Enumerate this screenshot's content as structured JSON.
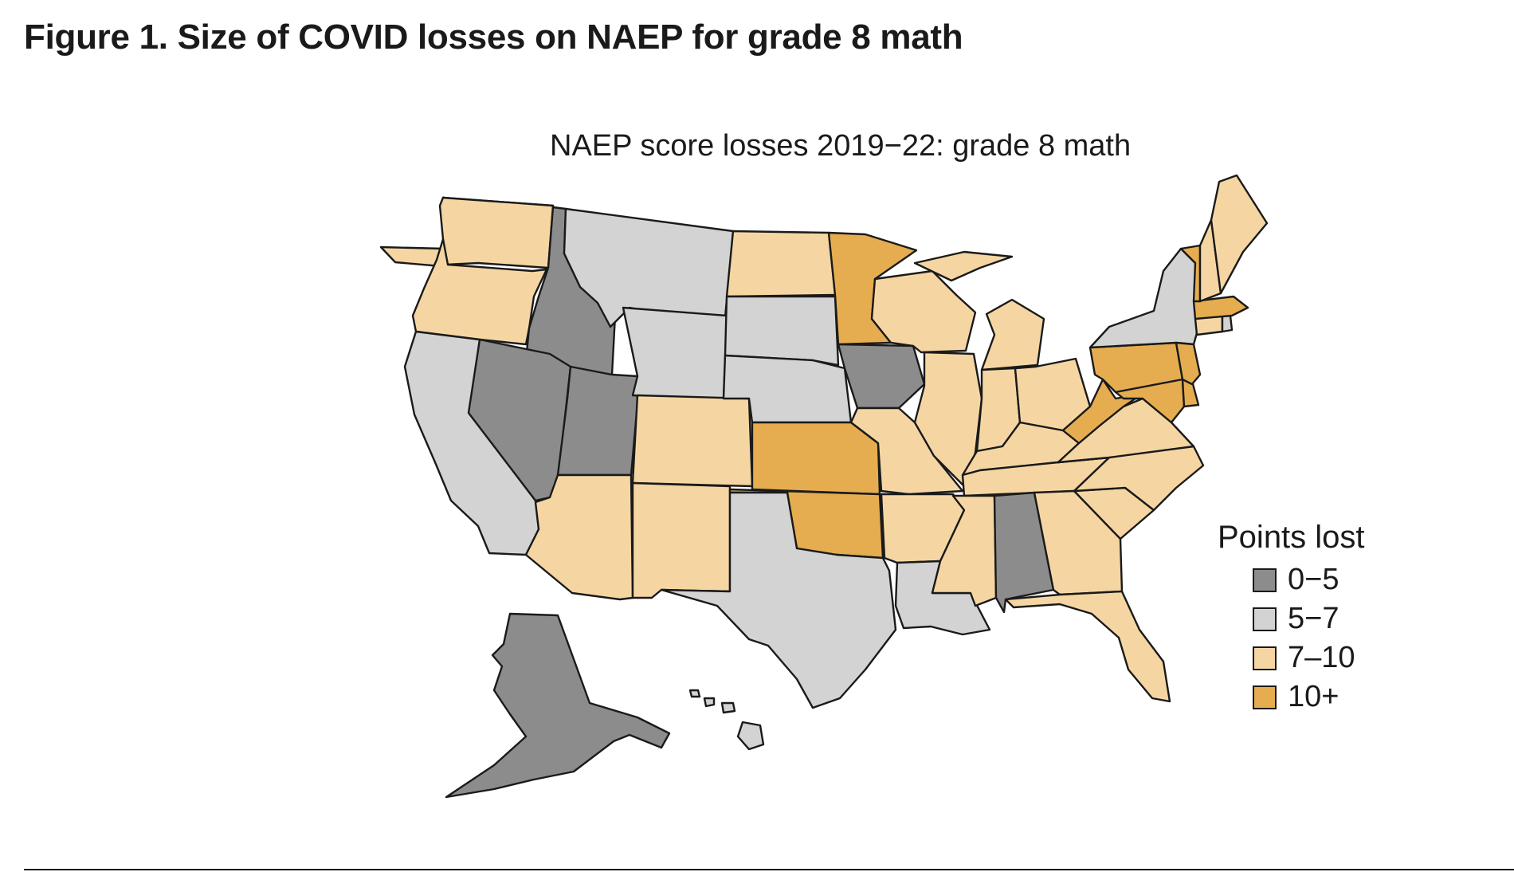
{
  "figure": {
    "title": "Figure 1. Size of COVID losses on NAEP for grade 8 math"
  },
  "map": {
    "title": "NAEP score losses 2019−22: grade 8 math"
  },
  "legend": {
    "title": "Points lost",
    "items": [
      {
        "label": "0−5",
        "color": "#8c8c8c"
      },
      {
        "label": "5−7",
        "color": "#d3d3d3"
      },
      {
        "label": "7–10",
        "color": "#f5d6a3"
      },
      {
        "label": "10+",
        "color": "#e6ad50"
      }
    ]
  },
  "states": [
    {
      "name": "Washington",
      "category": "7–10"
    },
    {
      "name": "Oregon",
      "category": "7–10"
    },
    {
      "name": "California",
      "category": "5−7"
    },
    {
      "name": "Idaho",
      "category": "0−5"
    },
    {
      "name": "Nevada",
      "category": "0−5"
    },
    {
      "name": "Utah",
      "category": "0−5"
    },
    {
      "name": "Arizona",
      "category": "7–10"
    },
    {
      "name": "Montana",
      "category": "5−7"
    },
    {
      "name": "Wyoming",
      "category": "5−7"
    },
    {
      "name": "Colorado",
      "category": "7–10"
    },
    {
      "name": "New Mexico",
      "category": "7–10"
    },
    {
      "name": "North Dakota",
      "category": "7–10"
    },
    {
      "name": "South Dakota",
      "category": "5−7"
    },
    {
      "name": "Nebraska",
      "category": "5−7"
    },
    {
      "name": "Kansas",
      "category": "10+"
    },
    {
      "name": "Oklahoma",
      "category": "10+"
    },
    {
      "name": "Texas",
      "category": "5−7"
    },
    {
      "name": "Minnesota",
      "category": "10+"
    },
    {
      "name": "Iowa",
      "category": "0−5"
    },
    {
      "name": "Missouri",
      "category": "7–10"
    },
    {
      "name": "Arkansas",
      "category": "7–10"
    },
    {
      "name": "Louisiana",
      "category": "5−7"
    },
    {
      "name": "Wisconsin",
      "category": "7–10"
    },
    {
      "name": "Illinois",
      "category": "7–10"
    },
    {
      "name": "Michigan",
      "category": "7–10"
    },
    {
      "name": "Indiana",
      "category": "7–10"
    },
    {
      "name": "Ohio",
      "category": "7–10"
    },
    {
      "name": "Kentucky",
      "category": "7–10"
    },
    {
      "name": "Tennessee",
      "category": "7–10"
    },
    {
      "name": "Mississippi",
      "category": "7–10"
    },
    {
      "name": "Alabama",
      "category": "0−5"
    },
    {
      "name": "Georgia",
      "category": "7–10"
    },
    {
      "name": "Florida",
      "category": "7–10"
    },
    {
      "name": "South Carolina",
      "category": "7–10"
    },
    {
      "name": "North Carolina",
      "category": "7–10"
    },
    {
      "name": "Virginia",
      "category": "7–10"
    },
    {
      "name": "West Virginia",
      "category": "10+"
    },
    {
      "name": "Pennsylvania",
      "category": "10+"
    },
    {
      "name": "New York",
      "category": "5−7"
    },
    {
      "name": "Maryland",
      "category": "10+"
    },
    {
      "name": "Delaware",
      "category": "10+"
    },
    {
      "name": "New Jersey",
      "category": "10+"
    },
    {
      "name": "Connecticut",
      "category": "7–10"
    },
    {
      "name": "Rhode Island",
      "category": "5−7"
    },
    {
      "name": "Massachusetts",
      "category": "10+"
    },
    {
      "name": "Vermont",
      "category": "10+"
    },
    {
      "name": "New Hampshire",
      "category": "7–10"
    },
    {
      "name": "Maine",
      "category": "7–10"
    },
    {
      "name": "Alaska",
      "category": "0−5"
    },
    {
      "name": "Hawaii",
      "category": "5−7"
    }
  ]
}
